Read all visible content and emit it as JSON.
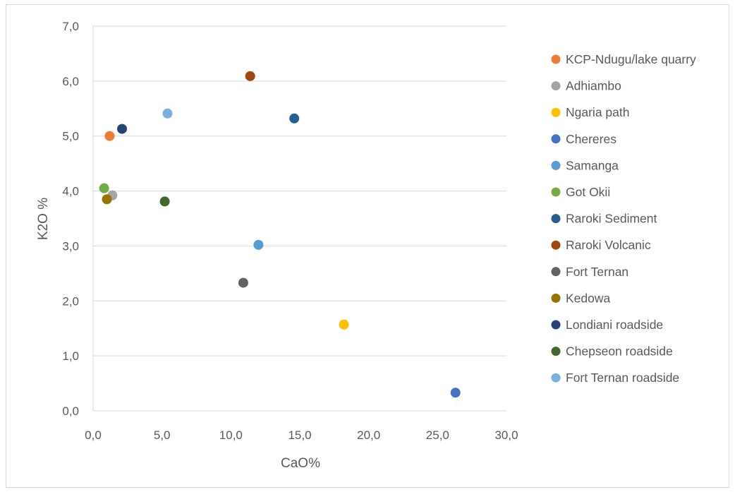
{
  "chart_data": {
    "type": "scatter",
    "title": "",
    "xlabel": "CaO%",
    "ylabel": "K2O %",
    "xlim": [
      0,
      30
    ],
    "ylim": [
      0,
      7
    ],
    "x_ticks": [
      "0,0",
      "5,0",
      "10,0",
      "15,0",
      "20,0",
      "25,0",
      "30,0"
    ],
    "y_ticks": [
      "0,0",
      "1,0",
      "2,0",
      "3,0",
      "4,0",
      "5,0",
      "6,0",
      "7,0"
    ],
    "grid": "horizontal",
    "legend_position": "right",
    "series": [
      {
        "name": "KCP-Ndugu/lake quarry",
        "color": "#ED7D31",
        "points": [
          [
            1.2,
            5.0
          ]
        ]
      },
      {
        "name": "Adhiambo",
        "color": "#A5A5A5",
        "points": [
          [
            1.4,
            3.92
          ]
        ]
      },
      {
        "name": "Ngaria path",
        "color": "#FFC000",
        "points": [
          [
            18.2,
            1.57
          ]
        ]
      },
      {
        "name": "Chereres",
        "color": "#4472C4",
        "points": [
          [
            26.3,
            0.33
          ]
        ]
      },
      {
        "name": "Samanga",
        "color": "#5B9BD5",
        "points": [
          [
            12.0,
            3.02
          ]
        ]
      },
      {
        "name": "Got Okii",
        "color": "#70AD47",
        "points": [
          [
            0.8,
            4.05
          ]
        ]
      },
      {
        "name": "Raroki Sediment",
        "color": "#255E91",
        "points": [
          [
            14.6,
            5.32
          ]
        ]
      },
      {
        "name": "Raroki Volcanic",
        "color": "#9E480E",
        "points": [
          [
            11.4,
            6.09
          ]
        ]
      },
      {
        "name": "Fort Ternan",
        "color": "#636363",
        "points": [
          [
            10.9,
            2.33
          ]
        ]
      },
      {
        "name": "Kedowa",
        "color": "#997300",
        "points": [
          [
            1.0,
            3.85
          ]
        ]
      },
      {
        "name": "Londiani roadside",
        "color": "#264478",
        "points": [
          [
            2.1,
            5.13
          ]
        ]
      },
      {
        "name": "Chepseon roadside",
        "color": "#43682B",
        "points": [
          [
            5.2,
            3.81
          ]
        ]
      },
      {
        "name": "Fort Ternan roadside",
        "color": "#7CAFDD",
        "points": [
          [
            5.4,
            5.41
          ]
        ]
      }
    ]
  }
}
